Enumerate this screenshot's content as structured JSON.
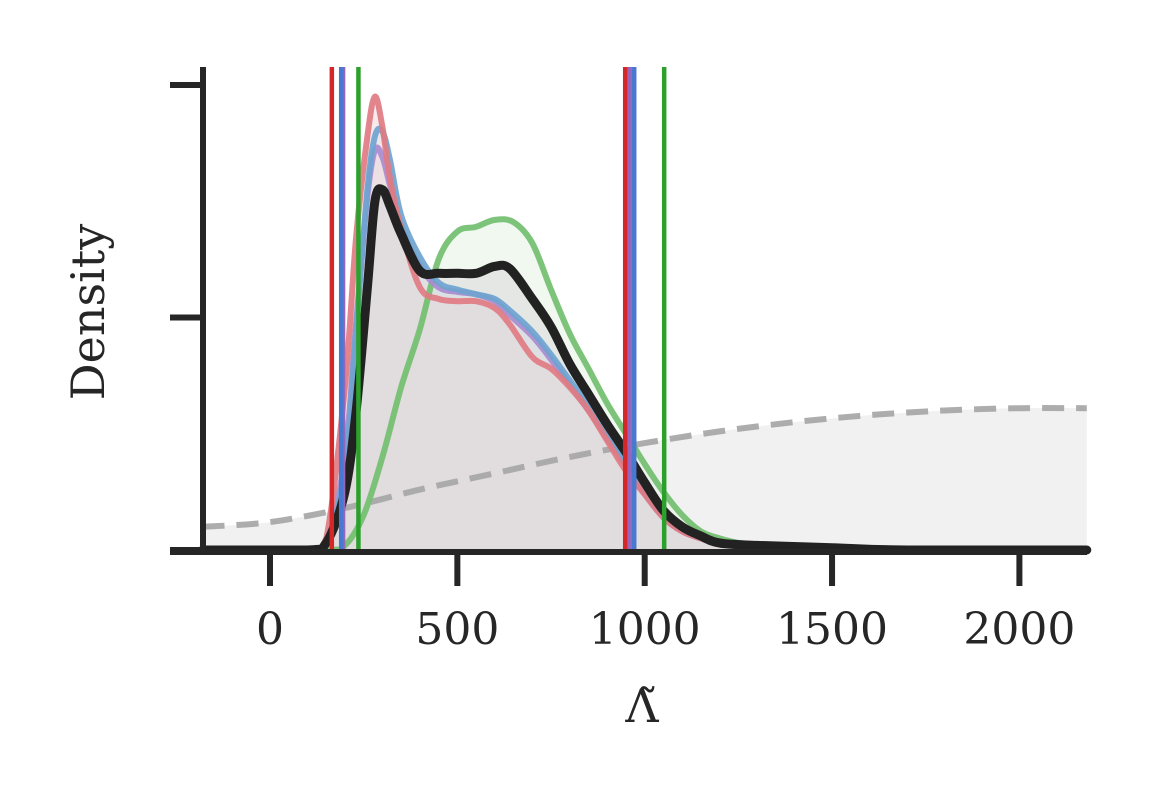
{
  "chart_data": {
    "type": "area",
    "title": "",
    "xlabel": "Λ̃",
    "ylabel": "Density",
    "xlim": [
      -180,
      2180
    ],
    "ylim": [
      0,
      0.002
    ],
    "xticks": [
      0,
      500,
      1000,
      1500,
      2000
    ],
    "xtick_labels": [
      "0",
      "500",
      "1000",
      "1500",
      "2000"
    ],
    "yticks": [
      0,
      0.001,
      0.002
    ],
    "ytick_labels": [
      "",
      "",
      ""
    ],
    "grid": false,
    "legend": "none",
    "series": [
      {
        "color": "#222222",
        "fill": "#d9d9d9",
        "style": "solid",
        "x": [
          -180,
          100,
          150,
          200,
          230,
          260,
          280,
          300,
          320,
          350,
          400,
          450,
          500,
          550,
          600,
          640,
          700,
          750,
          800,
          850,
          900,
          950,
          1000,
          1050,
          1100,
          1150,
          1200,
          1300,
          1500,
          1700,
          2180
        ],
        "y": [
          0,
          0,
          3e-05,
          0.00025,
          0.0006,
          0.00113,
          0.0015,
          0.00155,
          0.00148,
          0.00136,
          0.0012,
          0.00119,
          0.00119,
          0.00119,
          0.00122,
          0.00121,
          0.00108,
          0.00096,
          0.0008,
          0.00067,
          0.00054,
          0.00042,
          0.00029,
          0.00017,
          0.0001,
          6e-05,
          3e-05,
          2e-05,
          1e-05,
          0,
          0
        ]
      },
      {
        "color": "#e07b82",
        "fill": "#f3d8da",
        "style": "solid",
        "x": [
          -180,
          100,
          150,
          200,
          230,
          260,
          280,
          300,
          320,
          350,
          400,
          450,
          500,
          550,
          600,
          640,
          700,
          750,
          800,
          850,
          900,
          950,
          1000,
          1050,
          1100,
          1150,
          1200,
          1300,
          1500,
          1700,
          2180
        ],
        "y": [
          0,
          0,
          5e-05,
          0.0007,
          0.00135,
          0.00178,
          0.00195,
          0.00182,
          0.0016,
          0.00138,
          0.00113,
          0.00108,
          0.00107,
          0.00107,
          0.00104,
          0.00097,
          0.00083,
          0.00078,
          0.0007,
          0.0006,
          0.00047,
          0.00034,
          0.00024,
          0.00014,
          8e-05,
          5e-05,
          3e-05,
          1e-05,
          1e-05,
          0,
          0
        ]
      },
      {
        "color": "#6ea4d0",
        "fill": "#dce7ef",
        "style": "solid",
        "x": [
          -180,
          100,
          150,
          200,
          230,
          260,
          280,
          300,
          320,
          350,
          400,
          450,
          500,
          550,
          600,
          640,
          700,
          750,
          800,
          850,
          900,
          950,
          1000,
          1050,
          1100,
          1150,
          1200,
          1300,
          1500,
          1700,
          2180
        ],
        "y": [
          0,
          0,
          3e-05,
          0.00035,
          0.00095,
          0.00155,
          0.00178,
          0.0018,
          0.00168,
          0.00144,
          0.00126,
          0.00115,
          0.00112,
          0.0011,
          0.00108,
          0.00103,
          0.00094,
          0.00084,
          0.00073,
          0.00062,
          0.0005,
          0.00038,
          0.00026,
          0.00015,
          9e-05,
          5e-05,
          3e-05,
          2e-05,
          1e-05,
          0,
          0
        ]
      },
      {
        "color": "#a98bcf",
        "fill": "#e4dcee",
        "style": "solid",
        "x": [
          -180,
          100,
          150,
          200,
          230,
          260,
          280,
          300,
          320,
          350,
          400,
          450,
          500,
          550,
          600,
          640,
          700,
          750,
          800,
          850,
          900,
          950,
          1000,
          1050,
          1100,
          1150,
          1200,
          1300,
          1500,
          1700,
          2180
        ],
        "y": [
          0,
          0,
          3e-05,
          0.0004,
          0.00098,
          0.00152,
          0.00172,
          0.00169,
          0.00157,
          0.00139,
          0.00122,
          0.00113,
          0.00111,
          0.0011,
          0.00107,
          0.00101,
          0.00092,
          0.00082,
          0.00071,
          0.0006,
          0.00048,
          0.00036,
          0.00024,
          0.00014,
          8e-05,
          5e-05,
          3e-05,
          2e-05,
          1e-05,
          0,
          0
        ]
      },
      {
        "color": "#72bf6f",
        "fill": "#e6f2e3",
        "style": "solid",
        "x": [
          -180,
          150,
          200,
          250,
          300,
          350,
          400,
          450,
          500,
          550,
          600,
          650,
          700,
          750,
          800,
          850,
          900,
          950,
          1000,
          1050,
          1100,
          1150,
          1200,
          1250,
          1300,
          1400,
          1600,
          1800,
          2180
        ],
        "y": [
          0,
          0,
          2e-05,
          0.00015,
          0.0004,
          0.0007,
          0.00095,
          0.00125,
          0.00137,
          0.00139,
          0.00142,
          0.00141,
          0.00132,
          0.00112,
          0.00093,
          0.00078,
          0.00063,
          0.0005,
          0.00037,
          0.00025,
          0.00015,
          8e-05,
          5e-05,
          3e-05,
          2e-05,
          1e-05,
          0,
          0,
          0
        ]
      },
      {
        "color": "#a6a6a6",
        "fill": "#efefef",
        "style": "dashed",
        "x": [
          -180,
          0,
          200,
          400,
          600,
          800,
          1000,
          1200,
          1400,
          1600,
          1800,
          2000,
          2180
        ],
        "y": [
          0.0001,
          0.00012,
          0.00018,
          0.00026,
          0.00033,
          0.0004,
          0.00046,
          0.00051,
          0.00055,
          0.00058,
          0.0006,
          0.00061,
          0.00061
        ]
      }
    ],
    "vlines": [
      {
        "x": 165,
        "color": "#d62728"
      },
      {
        "x": 195,
        "color": "#9467bd"
      },
      {
        "x": 190,
        "color": "#4878cf"
      },
      {
        "x": 236,
        "color": "#2ca02c"
      },
      {
        "x": 948,
        "color": "#d62728"
      },
      {
        "x": 960,
        "color": "#9467bd"
      },
      {
        "x": 972,
        "color": "#4878cf"
      },
      {
        "x": 1052,
        "color": "#2ca02c"
      }
    ]
  }
}
